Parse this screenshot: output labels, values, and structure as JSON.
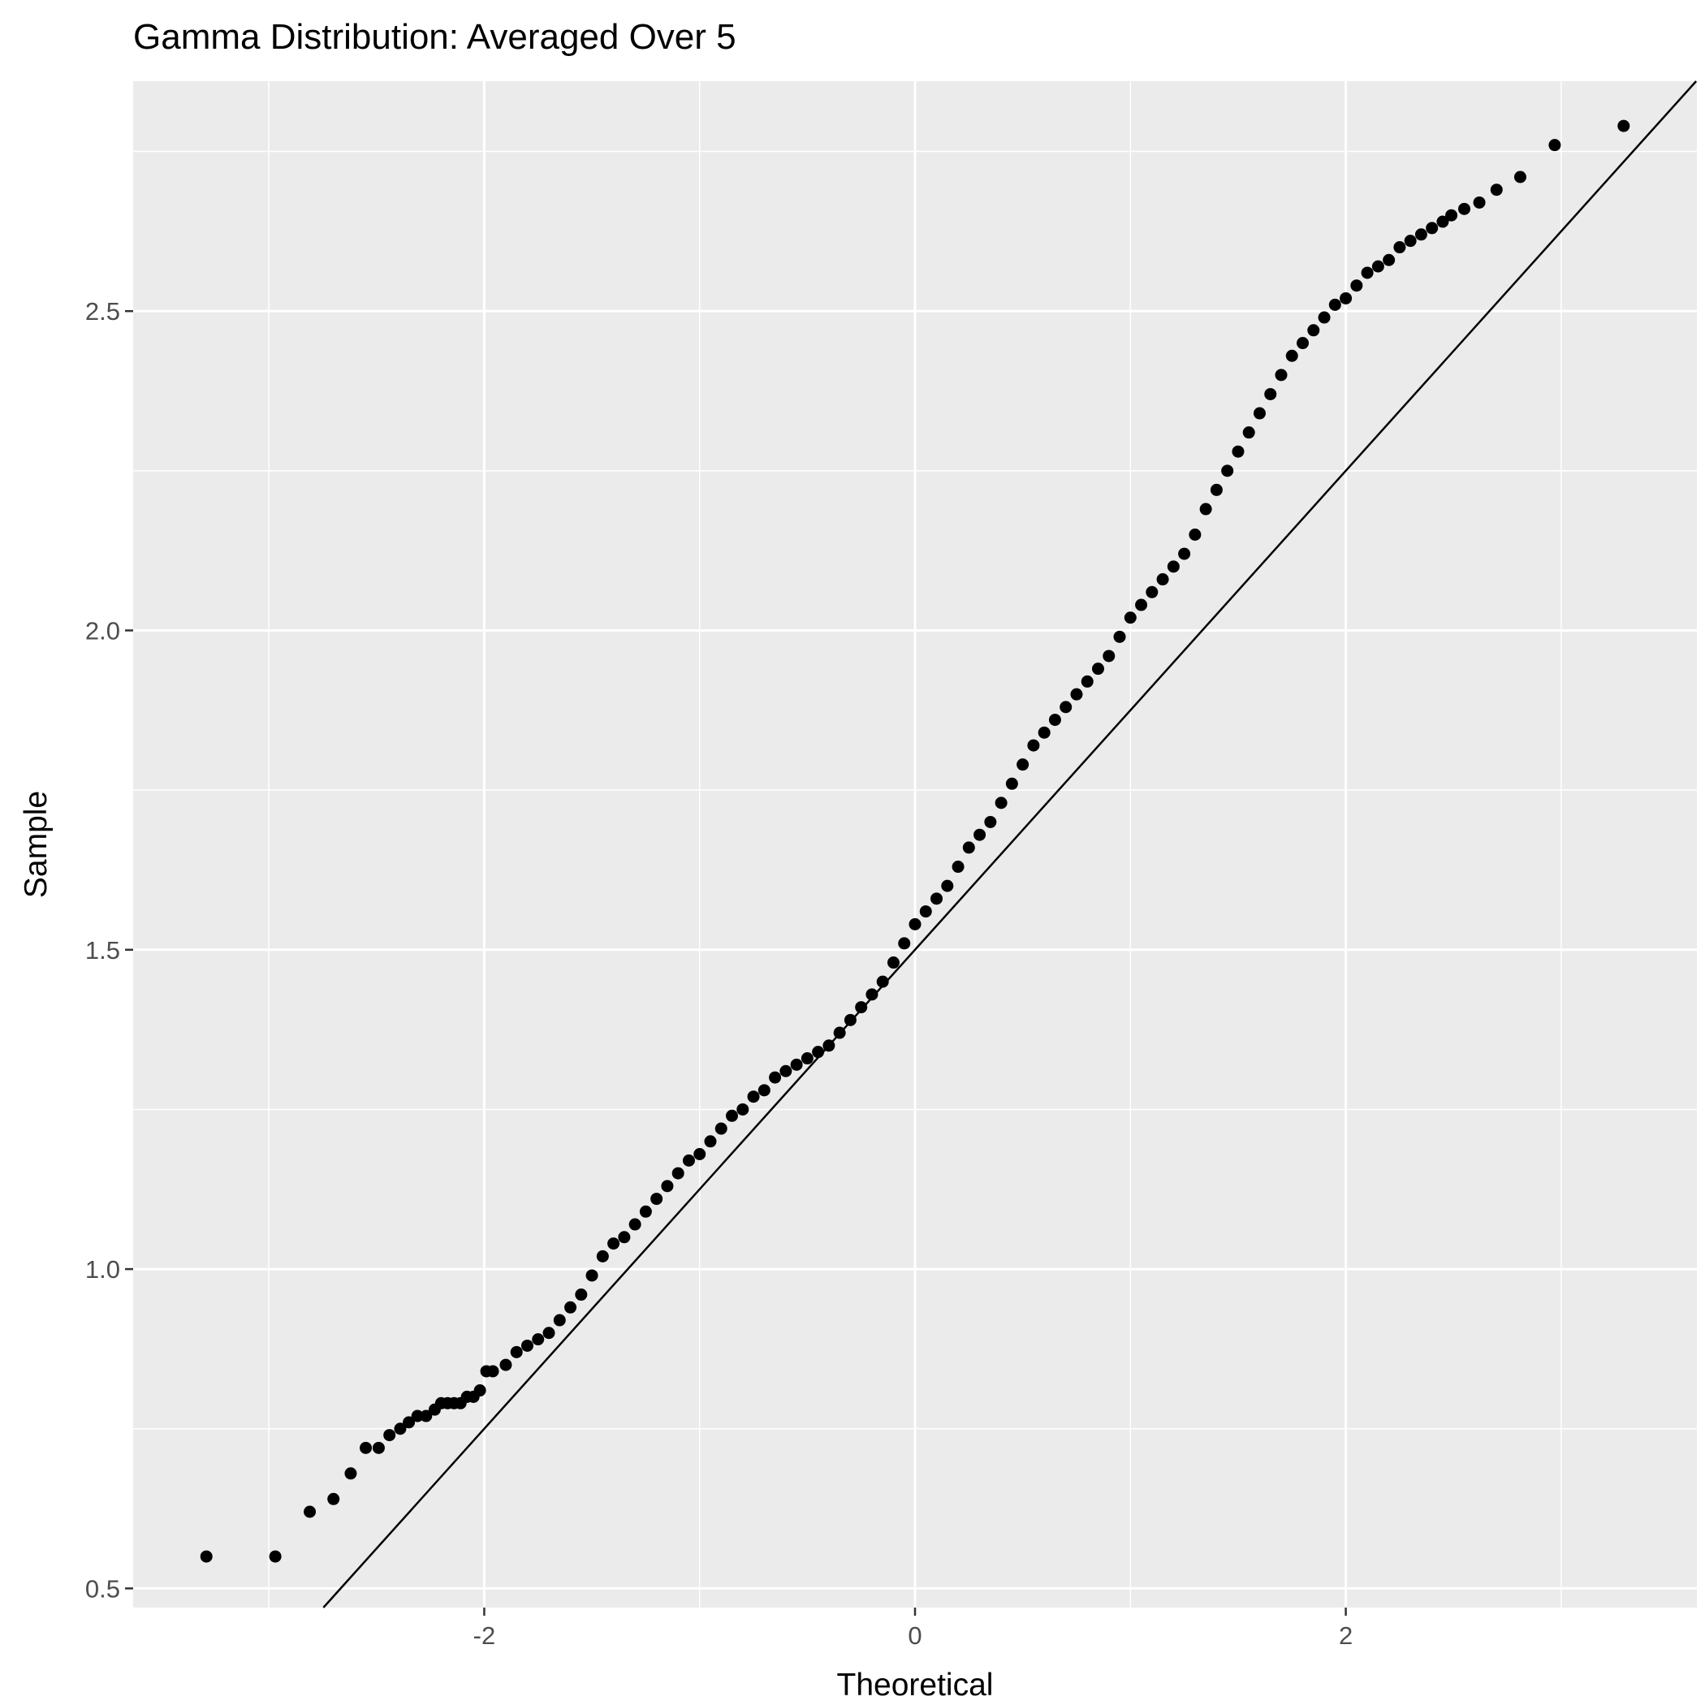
{
  "chart_data": {
    "type": "scatter",
    "title": "Gamma Distribution: Averaged Over 5",
    "xlabel": "Theoretical",
    "ylabel": "Sample",
    "xlim": [
      -3.63,
      3.63
    ],
    "ylim": [
      0.47,
      2.86
    ],
    "x_ticks": [
      -2,
      0,
      2
    ],
    "x_tick_labels": [
      "-2",
      "0",
      "2"
    ],
    "y_ticks": [
      0.5,
      1.0,
      1.5,
      2.0,
      2.5
    ],
    "y_tick_labels": [
      "0.5",
      "1.0",
      "1.5",
      "2.0",
      "2.5"
    ],
    "grid": true,
    "panel_background": "#ebebeb",
    "grid_color": "#ffffff",
    "point_color": "#000000",
    "reference_line": {
      "intercept": 1.5,
      "slope": 0.375
    },
    "series": [
      {
        "x": [
          -3.29,
          -2.97,
          -2.81,
          -2.7,
          -2.62,
          -2.55,
          -2.49,
          -2.44,
          -2.39,
          -2.35,
          -2.31,
          -2.27,
          -2.23,
          -2.2,
          -2.17,
          -2.14,
          -2.11,
          -2.08,
          -2.05,
          -2.02,
          -1.99,
          -1.96,
          -1.9,
          -1.85,
          -1.8,
          -1.75,
          -1.7,
          -1.65,
          -1.6,
          -1.55,
          -1.5,
          -1.45,
          -1.4,
          -1.35,
          -1.3,
          -1.25,
          -1.2,
          -1.15,
          -1.1,
          -1.05,
          -1.0,
          -0.95,
          -0.9,
          -0.85,
          -0.8,
          -0.75,
          -0.7,
          -0.65,
          -0.6,
          -0.55,
          -0.5,
          -0.45,
          -0.4,
          -0.35,
          -0.3,
          -0.25,
          -0.2,
          -0.15,
          -0.1,
          -0.05,
          0.0,
          0.05,
          0.1,
          0.15,
          0.2,
          0.25,
          0.3,
          0.35,
          0.4,
          0.45,
          0.5,
          0.55,
          0.6,
          0.65,
          0.7,
          0.75,
          0.8,
          0.85,
          0.9,
          0.95,
          1.0,
          1.05,
          1.1,
          1.15,
          1.2,
          1.25,
          1.3,
          1.35,
          1.4,
          1.45,
          1.5,
          1.55,
          1.6,
          1.65,
          1.7,
          1.75,
          1.8,
          1.85,
          1.9,
          1.95,
          2.0,
          2.05,
          2.1,
          2.15,
          2.2,
          2.25,
          2.3,
          2.35,
          2.4,
          2.45,
          2.49,
          2.55,
          2.62,
          2.7,
          2.81,
          2.97,
          3.29
        ],
        "y": [
          0.55,
          0.55,
          0.62,
          0.64,
          0.68,
          0.72,
          0.72,
          0.74,
          0.75,
          0.76,
          0.77,
          0.77,
          0.78,
          0.79,
          0.79,
          0.79,
          0.79,
          0.8,
          0.8,
          0.81,
          0.84,
          0.84,
          0.85,
          0.87,
          0.88,
          0.89,
          0.9,
          0.92,
          0.94,
          0.96,
          0.99,
          1.02,
          1.04,
          1.05,
          1.07,
          1.09,
          1.11,
          1.13,
          1.15,
          1.17,
          1.18,
          1.2,
          1.22,
          1.24,
          1.25,
          1.27,
          1.28,
          1.3,
          1.31,
          1.32,
          1.33,
          1.34,
          1.35,
          1.37,
          1.39,
          1.41,
          1.43,
          1.45,
          1.48,
          1.51,
          1.54,
          1.56,
          1.58,
          1.6,
          1.63,
          1.66,
          1.68,
          1.7,
          1.73,
          1.76,
          1.79,
          1.82,
          1.84,
          1.86,
          1.88,
          1.9,
          1.92,
          1.94,
          1.96,
          1.99,
          2.02,
          2.04,
          2.06,
          2.08,
          2.1,
          2.12,
          2.15,
          2.19,
          2.22,
          2.25,
          2.28,
          2.31,
          2.34,
          2.37,
          2.4,
          2.43,
          2.45,
          2.47,
          2.49,
          2.51,
          2.52,
          2.54,
          2.56,
          2.57,
          2.58,
          2.6,
          2.61,
          2.62,
          2.63,
          2.64,
          2.65,
          2.66,
          2.67,
          2.69,
          2.71,
          2.76,
          2.79
        ]
      }
    ]
  }
}
